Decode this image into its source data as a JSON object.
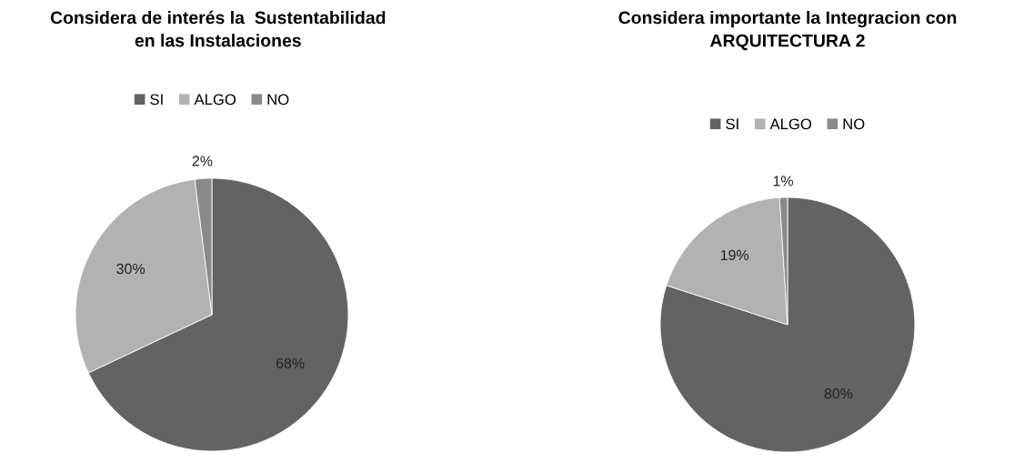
{
  "chart_data": [
    {
      "type": "pie",
      "title": "Considera de interés la  Sustentabilidad\nen las Instalaciones",
      "categories": [
        "SI",
        "ALGO",
        "NO"
      ],
      "values": [
        68,
        30,
        2
      ],
      "value_labels": [
        "68%",
        "30%",
        "2%"
      ],
      "colors": [
        "#636363",
        "#b2b2b2",
        "#8a8a8a"
      ],
      "legend": "top"
    },
    {
      "type": "pie",
      "title": "Considera importante la Integracion con\nARQUITECTURA 2",
      "categories": [
        "SI",
        "ALGO",
        "NO"
      ],
      "values": [
        80,
        19,
        1
      ],
      "value_labels": [
        "80%",
        "19%",
        "1%"
      ],
      "colors": [
        "#636363",
        "#b2b2b2",
        "#8a8a8a"
      ],
      "legend": "top"
    }
  ]
}
